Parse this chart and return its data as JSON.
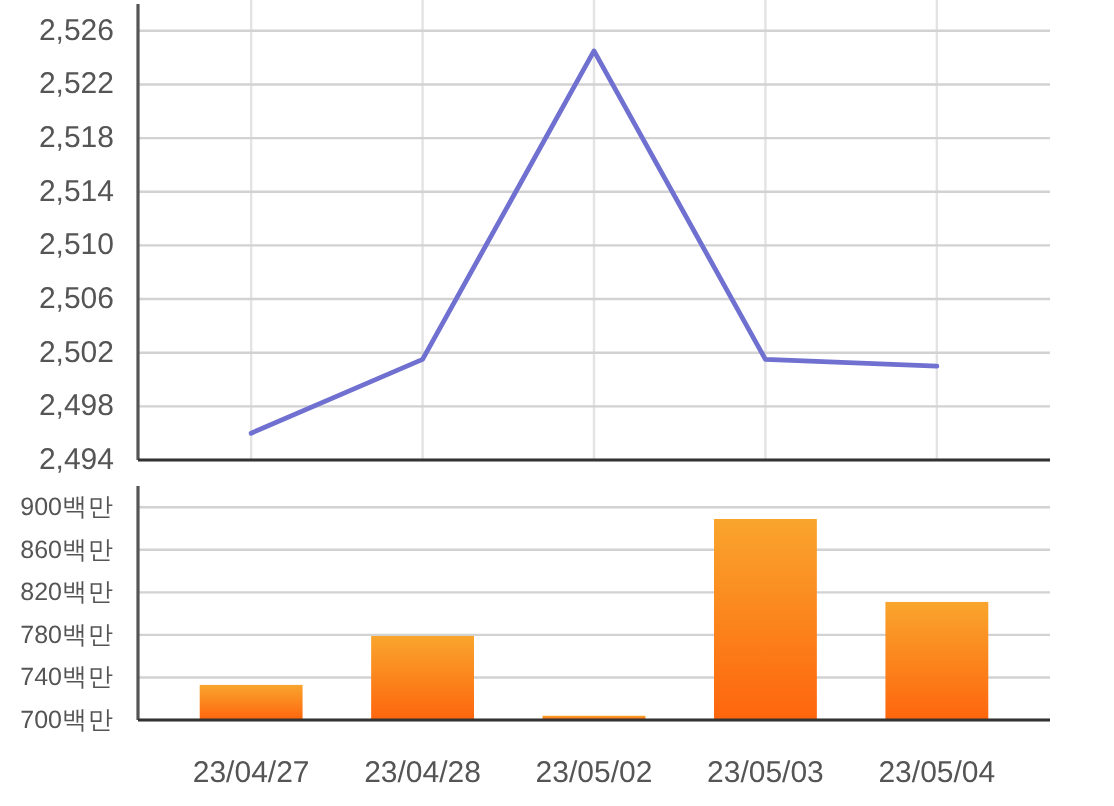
{
  "chart_data": [
    {
      "type": "line",
      "categories": [
        null,
        null,
        null,
        null,
        null
      ],
      "values": [
        2496,
        2501.5,
        2524.5,
        2501.5,
        2501
      ],
      "color": "#7070d0",
      "ylim": [
        2494,
        2528
      ],
      "yticks": [
        {
          "value": 2494,
          "label": "2,494"
        },
        {
          "value": 2498,
          "label": "2,498"
        },
        {
          "value": 2502,
          "label": "2,502"
        },
        {
          "value": 2506,
          "label": "2,506"
        },
        {
          "value": 2510,
          "label": "2,510"
        },
        {
          "value": 2514,
          "label": "2,514"
        },
        {
          "value": 2518,
          "label": "2,518"
        },
        {
          "value": 2522,
          "label": "2,522"
        },
        {
          "value": 2526,
          "label": "2,526"
        }
      ],
      "grid": true
    },
    {
      "type": "bar",
      "categories": [
        "23/04/27",
        "23/04/28",
        "23/05/02",
        "23/05/03",
        "23/05/04"
      ],
      "values": [
        733,
        779,
        704,
        889,
        811
      ],
      "color": "#fd8a1a",
      "ylim": [
        700,
        920
      ],
      "yticks": [
        {
          "value": 700,
          "label": "700백만"
        },
        {
          "value": 740,
          "label": "740백만"
        },
        {
          "value": 780,
          "label": "780백만"
        },
        {
          "value": 820,
          "label": "820백만"
        },
        {
          "value": 860,
          "label": "860백만"
        },
        {
          "value": 900,
          "label": "900백만"
        }
      ],
      "grid": "y"
    }
  ]
}
